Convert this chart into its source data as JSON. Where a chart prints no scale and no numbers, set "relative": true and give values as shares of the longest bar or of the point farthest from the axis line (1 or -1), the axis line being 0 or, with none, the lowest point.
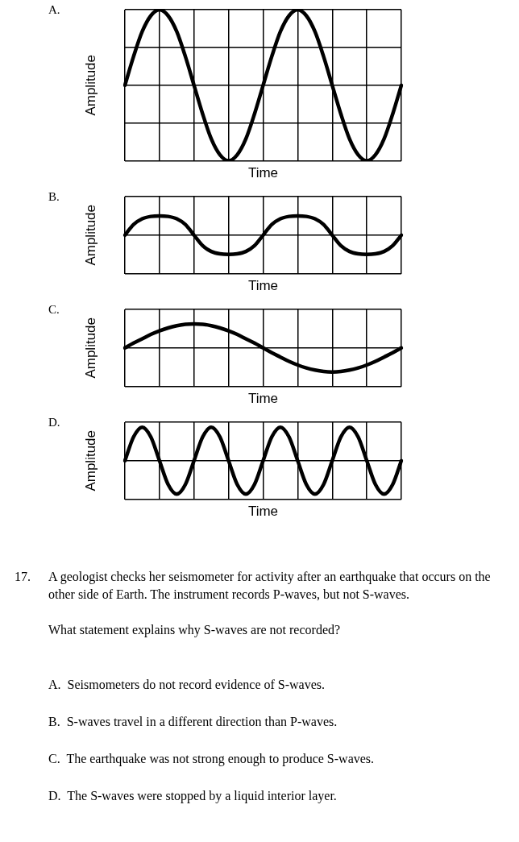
{
  "chart_data": [
    {
      "type": "line",
      "title": "A.",
      "xlabel": "Time",
      "ylabel": "Amplitude",
      "relative": true,
      "grid": true,
      "categories": [
        null,
        null,
        null,
        null,
        null,
        null,
        null,
        null,
        null,
        null,
        null,
        null,
        null,
        null,
        null,
        null,
        null,
        null,
        null,
        null,
        null,
        null,
        null,
        null,
        null,
        null,
        null,
        null,
        null,
        null,
        null,
        null,
        null
      ],
      "series": [
        {
          "color": "#000000",
          "values": [
            0,
            0.38,
            0.71,
            0.92,
            1,
            0.92,
            0.71,
            0.38,
            0,
            -0.38,
            -0.71,
            -0.92,
            -1,
            -0.92,
            -0.71,
            -0.38,
            0,
            0.38,
            0.71,
            0.92,
            1,
            0.92,
            0.71,
            0.38,
            0,
            -0.38,
            -0.71,
            -0.92,
            -1,
            -0.92,
            -0.71,
            -0.38,
            0
          ]
        }
      ]
    },
    {
      "type": "line",
      "title": "B.",
      "xlabel": "Time",
      "ylabel": "Amplitude",
      "relative": true,
      "grid": true,
      "categories": [
        null,
        null,
        null,
        null,
        null,
        null,
        null,
        null,
        null,
        null,
        null,
        null,
        null,
        null,
        null,
        null,
        null,
        null,
        null,
        null,
        null,
        null,
        null,
        null,
        null,
        null,
        null,
        null,
        null,
        null,
        null,
        null,
        null
      ],
      "series": [
        {
          "color": "#000000",
          "values": [
            0,
            0.55,
            0.85,
            0.97,
            1,
            0.97,
            0.85,
            0.55,
            0,
            -0.55,
            -0.85,
            -0.97,
            -1,
            -0.97,
            -0.85,
            -0.55,
            0,
            0.55,
            0.85,
            0.97,
            1,
            0.97,
            0.85,
            0.55,
            0,
            -0.55,
            -0.85,
            -0.97,
            -1,
            -0.97,
            -0.85,
            -0.55,
            0
          ]
        }
      ]
    },
    {
      "type": "line",
      "title": "C.",
      "xlabel": "Time",
      "ylabel": "Amplitude",
      "relative": true,
      "grid": true,
      "categories": [
        null,
        null,
        null,
        null,
        null,
        null,
        null,
        null,
        null,
        null,
        null,
        null,
        null,
        null,
        null,
        null,
        null,
        null,
        null,
        null,
        null,
        null,
        null,
        null,
        null,
        null,
        null,
        null,
        null,
        null,
        null,
        null,
        null
      ],
      "series": [
        {
          "color": "#000000",
          "values": [
            0,
            0.2,
            0.38,
            0.56,
            0.71,
            0.83,
            0.92,
            0.98,
            1,
            0.98,
            0.92,
            0.83,
            0.71,
            0.56,
            0.38,
            0.2,
            0,
            -0.2,
            -0.38,
            -0.56,
            -0.71,
            -0.83,
            -0.92,
            -0.98,
            -1,
            -0.98,
            -0.92,
            -0.83,
            -0.71,
            -0.56,
            -0.38,
            -0.2,
            0
          ]
        }
      ]
    },
    {
      "type": "line",
      "title": "D.",
      "xlabel": "Time",
      "ylabel": "Amplitude",
      "relative": true,
      "grid": true,
      "categories": [
        null,
        null,
        null,
        null,
        null,
        null,
        null,
        null,
        null,
        null,
        null,
        null,
        null,
        null,
        null,
        null,
        null,
        null,
        null,
        null,
        null,
        null,
        null,
        null,
        null,
        null,
        null,
        null,
        null,
        null,
        null,
        null,
        null
      ],
      "series": [
        {
          "color": "#000000",
          "values": [
            0,
            0.71,
            1,
            0.71,
            0,
            -0.71,
            -1,
            -0.71,
            0,
            0.71,
            1,
            0.71,
            0,
            -0.71,
            -1,
            -0.71,
            0,
            0.71,
            1,
            0.71,
            0,
            -0.71,
            -1,
            -0.71,
            0,
            0.71,
            1,
            0.71,
            0,
            -0.71,
            -1,
            -0.71,
            0
          ]
        }
      ]
    },
    {
      "type": "other",
      "annotations": [
        "17.",
        "A geologist checks her seismometer for activity after an earthquake that occurs on the other side of Earth.  The instrument records P-waves, but not S-waves.",
        "What statement explains why S-waves are not recorded?",
        "A.  Seismometers do not record evidence of S-waves.",
        "B.  S-waves travel in a different direction than P-waves.",
        "C.  The earthquake was not strong enough to produce S-waves.",
        "D.  The S-waves were stopped by a liquid interior layer."
      ]
    }
  ]
}
